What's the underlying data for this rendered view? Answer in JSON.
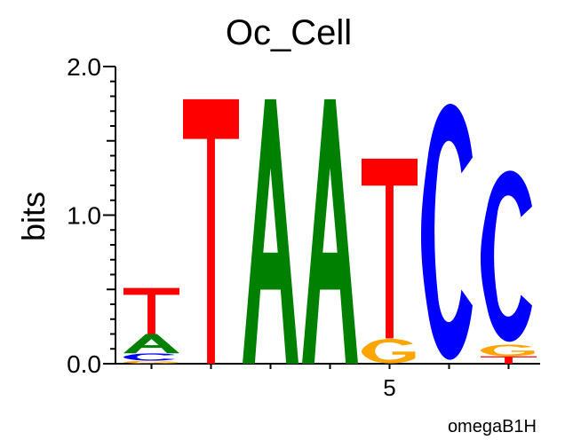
{
  "chart_data": {
    "type": "sequence_logo",
    "title": "Oc_Cell",
    "ylabel": "bits",
    "xlabel": "",
    "ylim": [
      0,
      2.0
    ],
    "y_ticks": [
      "0.0",
      "1.0",
      "2.0"
    ],
    "x_tick_labels": [
      {
        "position": 5,
        "label": "5"
      }
    ],
    "footer": "omegaB1H",
    "colors": {
      "A": "#008000",
      "C": "#0000ff",
      "G": "#ffa500",
      "T": "#ff0000"
    },
    "positions": [
      {
        "pos": 1,
        "stack": [
          {
            "base": "G",
            "bits": 0.02
          },
          {
            "base": "C",
            "bits": 0.05
          },
          {
            "base": "A",
            "bits": 0.13
          },
          {
            "base": "T",
            "bits": 0.31
          }
        ]
      },
      {
        "pos": 2,
        "stack": [
          {
            "base": "T",
            "bits": 1.78
          }
        ]
      },
      {
        "pos": 3,
        "stack": [
          {
            "base": "A",
            "bits": 1.78
          }
        ]
      },
      {
        "pos": 4,
        "stack": [
          {
            "base": "A",
            "bits": 1.78
          }
        ]
      },
      {
        "pos": 5,
        "stack": [
          {
            "base": "G",
            "bits": 0.17
          },
          {
            "base": "T",
            "bits": 1.21
          }
        ]
      },
      {
        "pos": 6,
        "stack": [
          {
            "base": "C",
            "bits": 1.78
          }
        ]
      },
      {
        "pos": 7,
        "stack": [
          {
            "base": "T",
            "bits": 0.05
          },
          {
            "base": "G",
            "bits": 0.08
          },
          {
            "base": "C",
            "bits": 1.19
          }
        ]
      }
    ]
  }
}
